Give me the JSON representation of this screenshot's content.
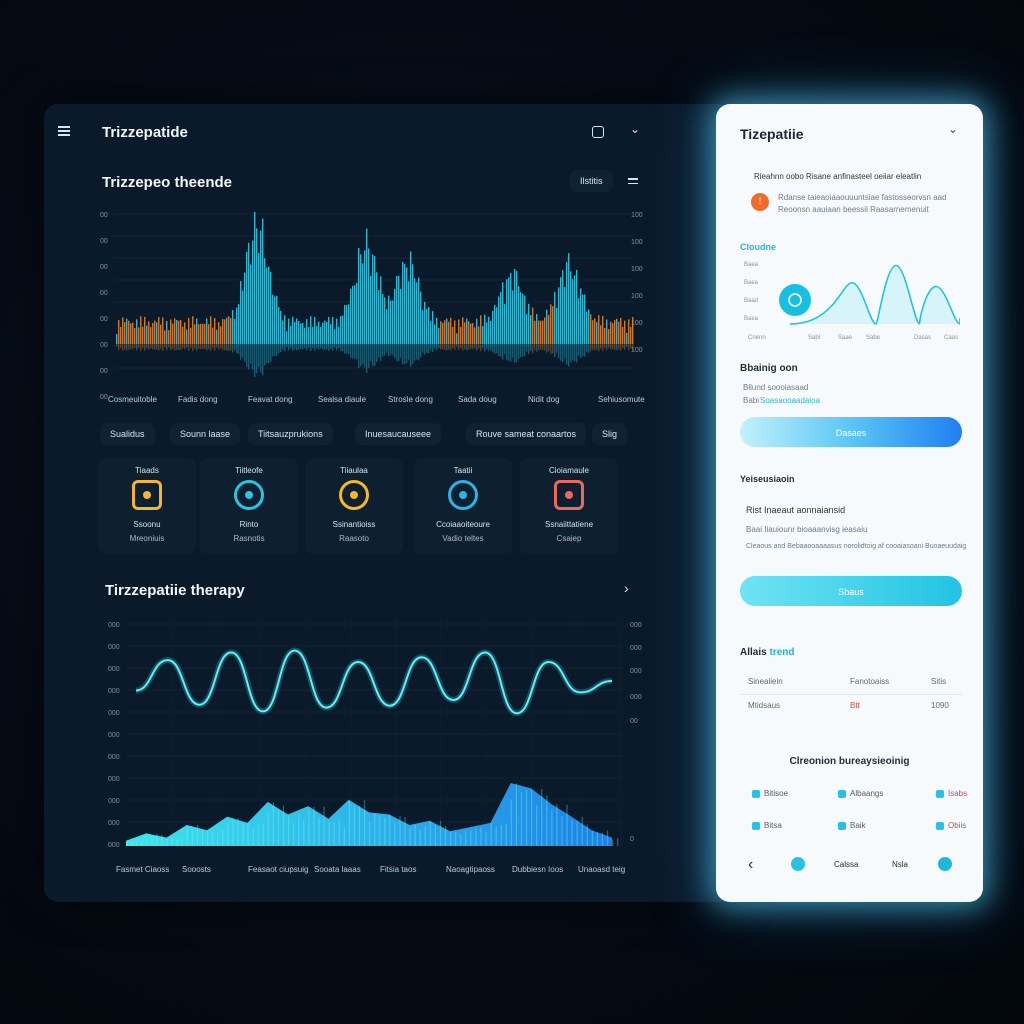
{
  "colors": {
    "accent": "#3fe6f2",
    "orange": "#f0923a",
    "blue": "#1e7cf0",
    "bg": "#0b1a2a"
  },
  "header": {
    "title": "Trizzepatide",
    "menu_icon": "hamburger-icon",
    "square_icon": "square-icon",
    "chevron_icon": "chevron-down-icon"
  },
  "trends": {
    "title": "Trizzepeo theende",
    "filter_label": "Ilstitis",
    "y_left": [
      "00",
      "00",
      "00",
      "00",
      "00",
      "00",
      "00",
      "00"
    ],
    "y_right": [
      "100",
      "100",
      "100",
      "100",
      "100",
      "100"
    ],
    "x_labels": [
      "Cosmeuitoble",
      "Fadis dong",
      "Feavat dong",
      "Sealsa diaule",
      "Strosle dong",
      "Sada doug",
      "Nidit dog",
      "Sehiusomute"
    ]
  },
  "tags": [
    "Sualidus",
    "Sounn laase",
    "Tiitsauzprukions",
    "Inuesaucauseee",
    "Rouve sameat conaartos",
    "Slig"
  ],
  "cards": [
    {
      "title": "Tiaads",
      "icon": "digestive-icon",
      "line1": "Ssoonu",
      "line2": "Mreoniuis"
    },
    {
      "title": "Tiitleofe",
      "icon": "book-icon",
      "line1": "Rinto",
      "line2": "Rasnotis"
    },
    {
      "title": "Tiiaulaa",
      "icon": "coin-icon",
      "line1": "Ssinantioiss",
      "line2": "Raasoto"
    },
    {
      "title": "Taatii",
      "icon": "cycle-icon",
      "line1": "Ccoiaaoiteoure",
      "line2": "Vadio teltes"
    },
    {
      "title": "Cioiamaule",
      "icon": "stomach-icon",
      "line1": "Ssnaiittatiene",
      "line2": "Csaiep"
    }
  ],
  "therapy": {
    "title": "Tirzzepatiie therapy",
    "y_left": [
      "000",
      "000",
      "000",
      "000",
      "000",
      "000",
      "000",
      "000",
      "000",
      "000",
      "000"
    ],
    "y_right": [
      "000",
      "000",
      "000",
      "000",
      "00",
      "0"
    ],
    "x_labels": [
      "Fasmet Ciaoss",
      "Sooosts",
      "Feasaot ciupsuig",
      "Sooata laaas",
      "Fitsia taos",
      "Naoagtipaoss",
      "Dubbiesn Ioos",
      "Unaoasd teig"
    ],
    "wave_values": [
      30,
      62,
      15,
      70,
      8,
      72,
      12,
      60,
      14,
      65,
      20,
      70,
      6,
      60,
      28,
      40
    ],
    "area_values": [
      5,
      12,
      8,
      20,
      15,
      28,
      22,
      42,
      30,
      38,
      26,
      44,
      32,
      30,
      20,
      24,
      14,
      18,
      22,
      60,
      55,
      40,
      28,
      15,
      8
    ]
  },
  "side": {
    "title": "Tizepatiie",
    "row1_head": "Rieahnn oobo Risane anfinasteel oeiiar eleatlin",
    "alert_text1": "Rdanse taieaoiaaouuuntsiae fastosseorvsn aad",
    "alert_text2": "Reoonsn aauiaan beessil Raasarnemenuit",
    "chart_title": "Cloudne",
    "chart_y": [
      "Baea",
      "Baea",
      "Baad",
      "Baea"
    ],
    "chart_x": [
      "Cnenn",
      "Sabl",
      "Saae",
      "Sabe",
      "Dasas",
      "Caas"
    ],
    "chart_peaks": [
      55,
      78,
      50
    ],
    "blood_title": "Bbainig oon",
    "blood_line1": "Bilund soooiasaad",
    "blood_line2a": "Babi",
    "blood_line2b": "Soasaooaadaioa",
    "btn1": "Dasaes",
    "vac_title": "Yeiseusiaoin",
    "vac_sub": "Rist Inaeaut aonnaiansid",
    "vac_line1": "Baai Iiauiounr bioaaanvisg ieasaiu",
    "vac_line2": "Cleaous and Bebaaooaaaasus norolidtoig af cooaiasoani Buoaeuudaig",
    "btn2": "Sbaus",
    "alert_title_a": "Allais",
    "alert_title_b": "trend",
    "table": [
      [
        "Sineaiiein",
        "Fanotoaiss",
        "Sitis"
      ],
      [
        "Mtidsaus",
        "Btt",
        "1090"
      ]
    ],
    "footer_title": "Clreonion bureaysieoinig",
    "grid": [
      [
        "Bitisoe",
        "Albaangs",
        "Isabs"
      ],
      [
        "Bitsa",
        "Baik",
        "Obiis"
      ]
    ],
    "nav": [
      "Calssa",
      "Nsla"
    ]
  }
}
